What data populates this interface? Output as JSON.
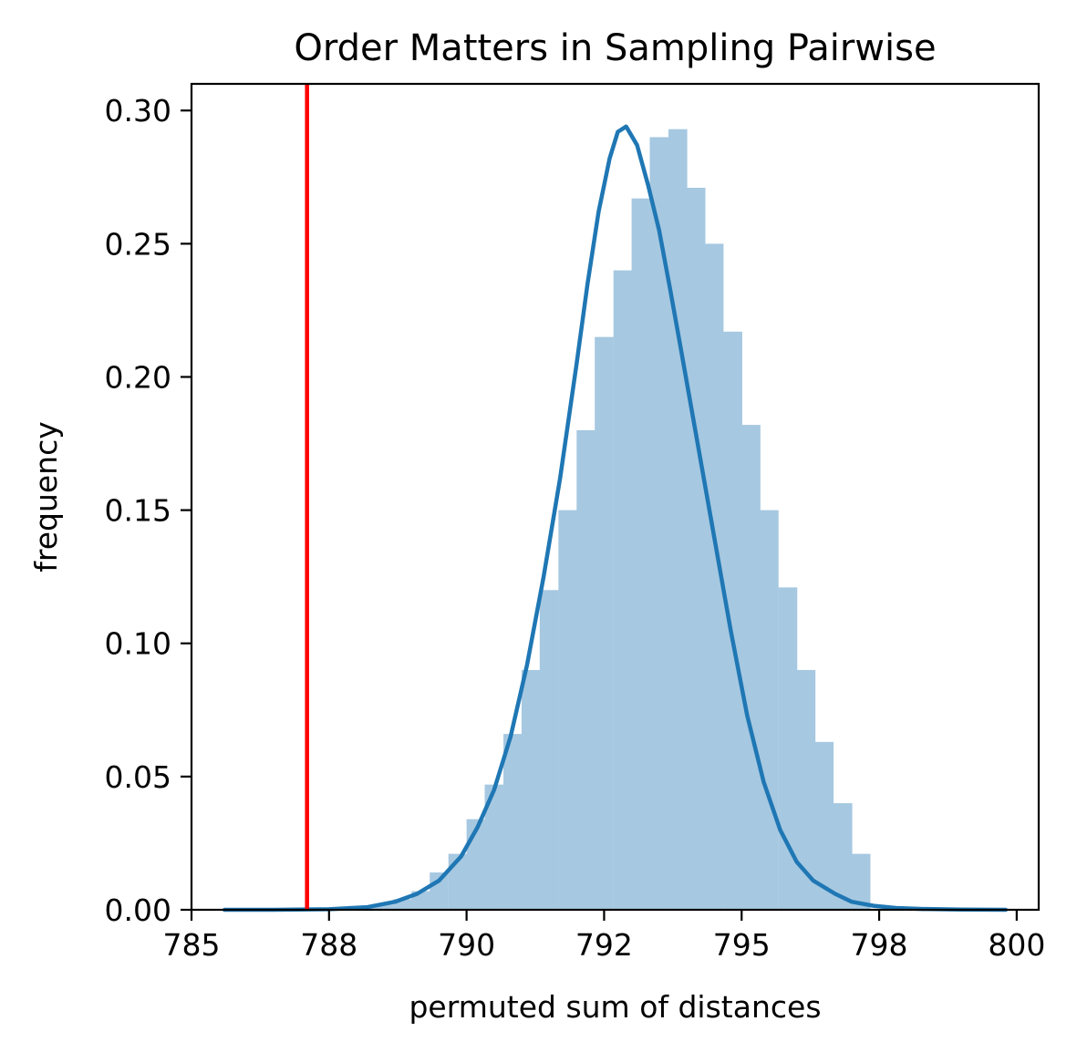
{
  "chart_data": {
    "type": "histogram",
    "title": "Order Matters in Sampling Pairwise",
    "xlabel": "permuted sum of distances",
    "ylabel": "frequency",
    "xlim": [
      785.0,
      800.4
    ],
    "ylim": [
      0.0,
      0.31
    ],
    "x_ticks": [
      785,
      787.5,
      790,
      792.5,
      795,
      797.5,
      800
    ],
    "x_tick_labels": [
      "785",
      "788",
      "790",
      "792",
      "795",
      "798",
      "800"
    ],
    "y_ticks": [
      0.0,
      0.05,
      0.1,
      0.15,
      0.2,
      0.25,
      0.3
    ],
    "y_tick_labels": [
      "0.00",
      "0.05",
      "0.10",
      "0.15",
      "0.20",
      "0.25",
      "0.30"
    ],
    "grid": false,
    "bins": {
      "left_edges": [
        788.0,
        788.33,
        788.67,
        789.0,
        789.33,
        789.67,
        790.0,
        790.33,
        790.67,
        791.0,
        791.33,
        791.67,
        792.0,
        792.33,
        792.67,
        793.0,
        793.33,
        793.67,
        794.0,
        794.33,
        794.67,
        795.0,
        795.33,
        795.67,
        796.0,
        796.33,
        796.67,
        797.0
      ],
      "width": 0.333,
      "heights": [
        0.001,
        0.002,
        0.004,
        0.007,
        0.014,
        0.021,
        0.034,
        0.047,
        0.066,
        0.09,
        0.12,
        0.15,
        0.18,
        0.215,
        0.24,
        0.267,
        0.29,
        0.293,
        0.271,
        0.25,
        0.217,
        0.182,
        0.15,
        0.121,
        0.09,
        0.063,
        0.04,
        0.021
      ]
    },
    "kde": {
      "x": [
        785.6,
        786.5,
        787.5,
        788.2,
        788.7,
        789.1,
        789.5,
        789.9,
        790.2,
        790.5,
        790.8,
        791.1,
        791.4,
        791.7,
        792.0,
        792.2,
        792.4,
        792.6,
        792.75,
        792.9,
        793.1,
        793.3,
        793.5,
        793.7,
        793.9,
        794.2,
        794.5,
        794.8,
        795.1,
        795.4,
        795.7,
        796.0,
        796.3,
        796.7,
        797.0,
        797.4,
        797.8,
        798.3,
        799.0,
        799.8
      ],
      "y": [
        0.0,
        0.0,
        0.0002,
        0.001,
        0.003,
        0.006,
        0.011,
        0.02,
        0.031,
        0.045,
        0.065,
        0.092,
        0.125,
        0.162,
        0.205,
        0.235,
        0.262,
        0.282,
        0.292,
        0.294,
        0.287,
        0.272,
        0.255,
        0.233,
        0.21,
        0.175,
        0.14,
        0.105,
        0.073,
        0.048,
        0.03,
        0.018,
        0.011,
        0.006,
        0.003,
        0.0015,
        0.0007,
        0.0003,
        0.0001,
        0.0
      ],
      "color": "#1f77b4"
    },
    "vline": {
      "x": 787.1,
      "color": "#ff0000"
    },
    "hist_color": "#a6c8e1"
  }
}
